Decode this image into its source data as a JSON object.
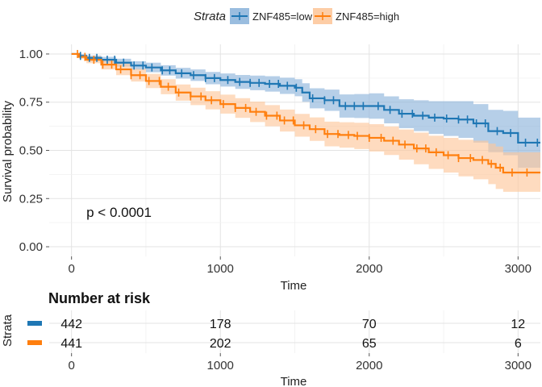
{
  "chart_data": {
    "type": "line",
    "subtype": "kaplan-meier",
    "legend_title": "Strata",
    "legend_position": "top",
    "xlabel": "Time",
    "ylabel": "Survival probability",
    "xlim": [
      -150,
      3150
    ],
    "ylim": [
      -0.05,
      1.05
    ],
    "x_ticks": [
      0,
      1000,
      2000,
      3000
    ],
    "y_ticks": [
      0.0,
      0.25,
      0.5,
      0.75,
      1.0
    ],
    "y_tick_labels": [
      "0.00",
      "0.25",
      "0.50",
      "0.75",
      "1.00"
    ],
    "grid": true,
    "annotation": "p < 0.0001",
    "annotation_pos": [
      100,
      0.18
    ],
    "series": [
      {
        "name": "ZNF485=low",
        "color": "#1f77b4",
        "fill": "#8fb6db",
        "x": [
          0,
          50,
          100,
          200,
          300,
          400,
          500,
          600,
          700,
          800,
          900,
          1000,
          1100,
          1200,
          1300,
          1400,
          1500,
          1550,
          1600,
          1700,
          1800,
          1900,
          2000,
          2100,
          2200,
          2300,
          2400,
          2500,
          2600,
          2700,
          2800,
          2900,
          3000,
          3150
        ],
        "y": [
          1.0,
          0.99,
          0.98,
          0.97,
          0.955,
          0.94,
          0.93,
          0.915,
          0.9,
          0.89,
          0.875,
          0.865,
          0.855,
          0.85,
          0.845,
          0.835,
          0.825,
          0.8,
          0.77,
          0.76,
          0.73,
          0.73,
          0.73,
          0.71,
          0.69,
          0.68,
          0.67,
          0.665,
          0.66,
          0.64,
          0.6,
          0.59,
          0.54,
          0.54
        ],
        "lower": [
          1.0,
          0.985,
          0.972,
          0.955,
          0.935,
          0.918,
          0.905,
          0.888,
          0.872,
          0.86,
          0.843,
          0.831,
          0.819,
          0.812,
          0.805,
          0.793,
          0.781,
          0.752,
          0.718,
          0.705,
          0.67,
          0.668,
          0.664,
          0.64,
          0.615,
          0.6,
          0.585,
          0.575,
          0.565,
          0.54,
          0.49,
          0.475,
          0.41,
          0.41
        ],
        "upper": [
          1.0,
          0.998,
          0.992,
          0.985,
          0.975,
          0.962,
          0.955,
          0.942,
          0.928,
          0.92,
          0.907,
          0.899,
          0.891,
          0.888,
          0.885,
          0.877,
          0.869,
          0.848,
          0.822,
          0.815,
          0.79,
          0.792,
          0.796,
          0.78,
          0.765,
          0.76,
          0.755,
          0.755,
          0.755,
          0.74,
          0.71,
          0.705,
          0.67,
          0.67
        ],
        "censor_x": [
          60,
          120,
          170,
          240,
          290,
          350,
          420,
          480,
          540,
          610,
          660,
          740,
          820,
          900,
          960,
          1050,
          1130,
          1200,
          1260,
          1330,
          1390,
          1450,
          1510,
          1620,
          1700,
          1760,
          1840,
          1900,
          1960,
          2060,
          2140,
          2220,
          2290,
          2360,
          2440,
          2520,
          2600,
          2660,
          2720,
          2780,
          2860,
          2950,
          3050,
          3130
        ]
      },
      {
        "name": "ZNF485=high",
        "color": "#ff7f0e",
        "fill": "#fdc89c",
        "x": [
          0,
          50,
          100,
          200,
          300,
          400,
          500,
          600,
          700,
          800,
          900,
          1000,
          1100,
          1200,
          1300,
          1400,
          1500,
          1600,
          1700,
          1800,
          1900,
          2000,
          2100,
          2200,
          2300,
          2400,
          2500,
          2600,
          2700,
          2800,
          2850,
          2900,
          2950,
          3000,
          3150
        ],
        "y": [
          1.0,
          0.985,
          0.97,
          0.945,
          0.92,
          0.89,
          0.86,
          0.83,
          0.8,
          0.78,
          0.76,
          0.74,
          0.72,
          0.7,
          0.68,
          0.655,
          0.63,
          0.61,
          0.585,
          0.58,
          0.575,
          0.565,
          0.55,
          0.53,
          0.51,
          0.49,
          0.475,
          0.46,
          0.45,
          0.43,
          0.41,
          0.385,
          0.385,
          0.385,
          0.385
        ],
        "lower": [
          1.0,
          0.975,
          0.952,
          0.92,
          0.89,
          0.857,
          0.823,
          0.791,
          0.758,
          0.735,
          0.713,
          0.691,
          0.669,
          0.647,
          0.625,
          0.598,
          0.571,
          0.549,
          0.521,
          0.514,
          0.507,
          0.494,
          0.476,
          0.452,
          0.428,
          0.404,
          0.385,
          0.365,
          0.35,
          0.325,
          0.3,
          0.285,
          0.285,
          0.285,
          0.285
        ],
        "upper": [
          1.0,
          0.995,
          0.988,
          0.97,
          0.95,
          0.923,
          0.897,
          0.869,
          0.842,
          0.825,
          0.807,
          0.789,
          0.771,
          0.753,
          0.735,
          0.712,
          0.689,
          0.671,
          0.649,
          0.646,
          0.643,
          0.636,
          0.624,
          0.608,
          0.592,
          0.576,
          0.565,
          0.555,
          0.55,
          0.535,
          0.52,
          0.49,
          0.49,
          0.49,
          0.49
        ],
        "censor_x": [
          40,
          90,
          150,
          210,
          270,
          330,
          400,
          460,
          520,
          590,
          650,
          720,
          800,
          870,
          940,
          1020,
          1100,
          1170,
          1240,
          1310,
          1380,
          1430,
          1490,
          1560,
          1640,
          1720,
          1790,
          1860,
          1920,
          2000,
          2080,
          2160,
          2240,
          2320,
          2380,
          2450,
          2530,
          2600,
          2680,
          2760,
          2820,
          2880,
          2960,
          3060
        ]
      }
    ],
    "risk_table": {
      "title": "Number at risk",
      "ylabel": "Strata",
      "xlabel": "Time",
      "times": [
        0,
        1000,
        2000,
        3000
      ],
      "rows": [
        {
          "name": "ZNF485=low",
          "color": "#1f77b4",
          "values": [
            "442",
            "178",
            "70",
            "12"
          ]
        },
        {
          "name": "ZNF485=high",
          "color": "#ff7f0e",
          "values": [
            "441",
            "202",
            "65",
            "6"
          ]
        }
      ]
    }
  }
}
